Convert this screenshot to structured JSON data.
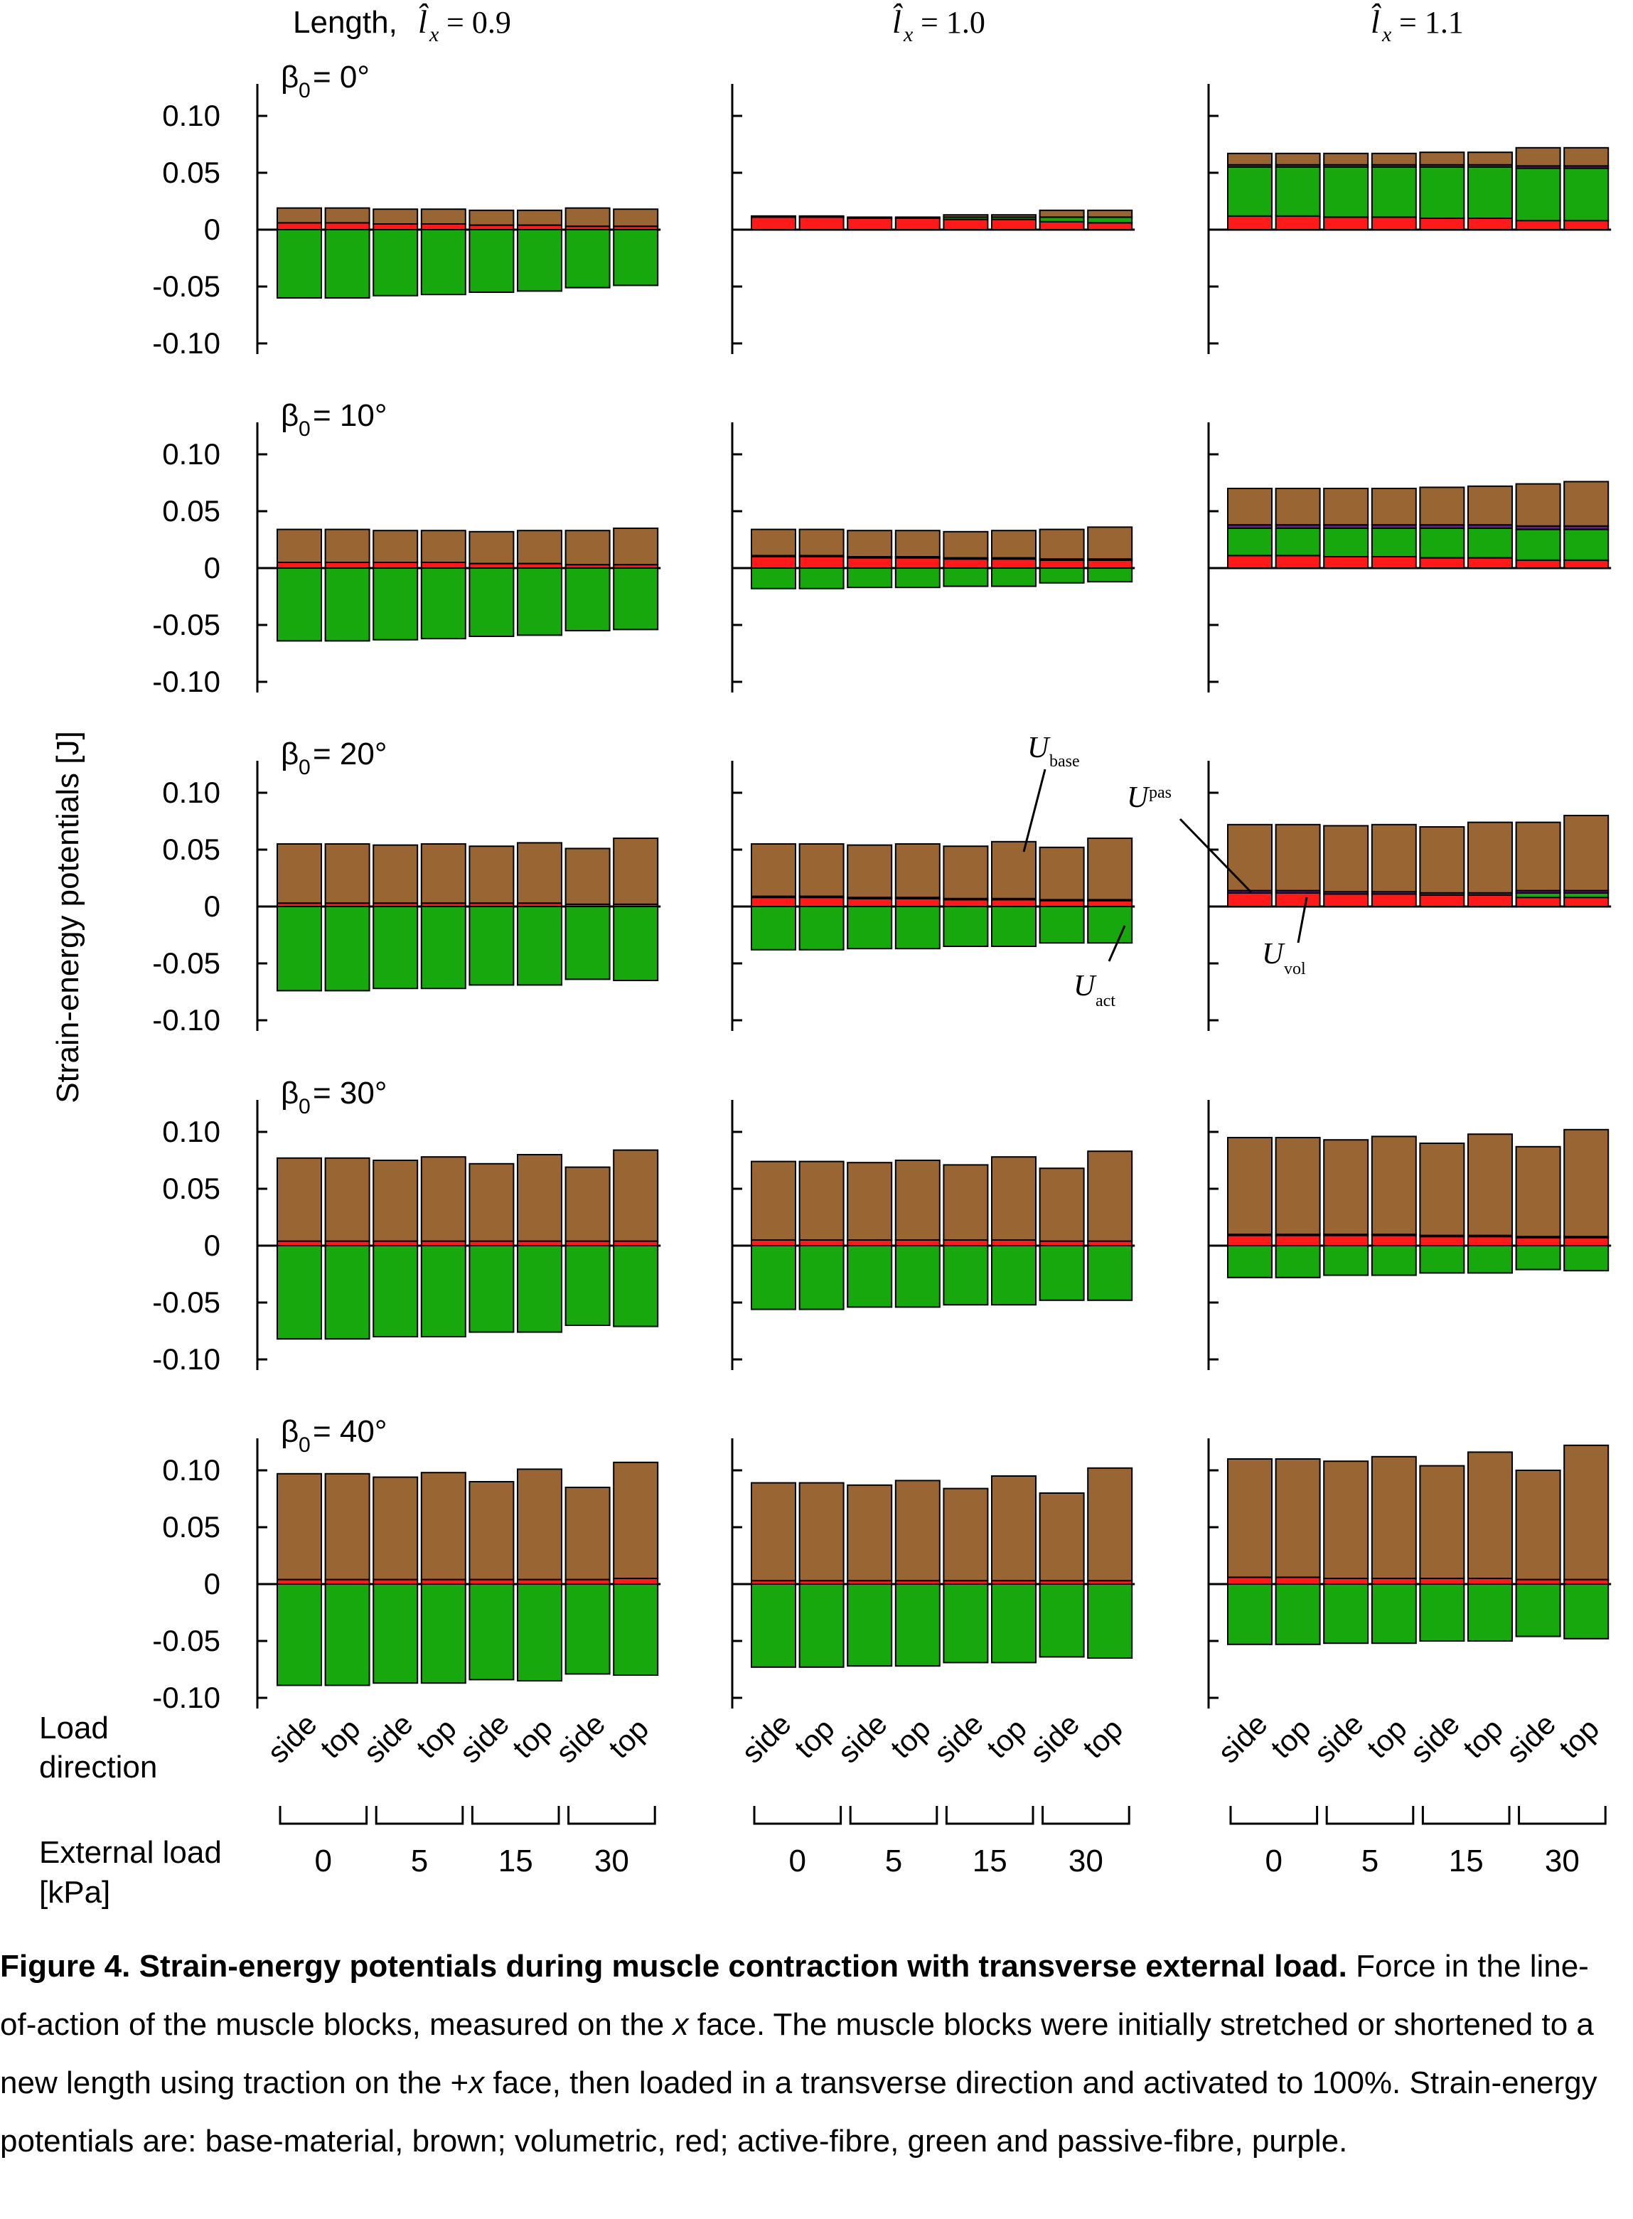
{
  "colors": {
    "base": "#996633",
    "vol": "#ff1a1a",
    "act": "#16a80d",
    "pas": "#6a1c8f",
    "line": "#000000"
  },
  "header": {
    "length_label": "Length, ",
    "col_labels": [
      "= 0.9",
      "= 1.0",
      "= 1.1"
    ]
  },
  "y_axis": {
    "label": "Strain-energy potentials [J]",
    "ticks": [
      "0.10",
      "0.05",
      "0",
      "-0.05",
      "-0.10"
    ]
  },
  "rows": [
    {
      "beta_label": "= 0°"
    },
    {
      "beta_label": "= 10°"
    },
    {
      "beta_label": "= 20°"
    },
    {
      "beta_label": "= 30°"
    },
    {
      "beta_label": "= 40°"
    }
  ],
  "x_axis": {
    "load_direction_label": [
      "Load",
      "direction"
    ],
    "directions": [
      "side",
      "top",
      "side",
      "top",
      "side",
      "top",
      "side",
      "top"
    ],
    "external_load_label": [
      "External load",
      "[kPa]"
    ],
    "load_values": [
      "0",
      "5",
      "15",
      "30"
    ]
  },
  "annotations": {
    "U_base": "base",
    "U_pas": "pas",
    "U_vol": "vol",
    "U_act": "act"
  },
  "chart_data": {
    "type": "bar",
    "description_units": "J",
    "ylim": [
      -0.1,
      0.13
    ],
    "categories": [
      "0 side",
      "0 top",
      "5 side",
      "5 top",
      "15 side",
      "15 top",
      "30 side",
      "30 top"
    ],
    "panels": [
      {
        "row": 0,
        "col": 0,
        "title": "β0 = 0°, lx = 0.9",
        "vol": [
          0.006,
          0.006,
          0.005,
          0.005,
          0.004,
          0.004,
          0.003,
          0.003
        ],
        "pas": [
          0,
          0,
          0,
          0,
          0,
          0,
          0,
          0
        ],
        "base": [
          0.013,
          0.013,
          0.013,
          0.013,
          0.013,
          0.013,
          0.016,
          0.015
        ],
        "act": [
          -0.06,
          -0.06,
          -0.058,
          -0.057,
          -0.055,
          -0.054,
          -0.051,
          -0.049
        ]
      },
      {
        "row": 0,
        "col": 1,
        "title": "β0 = 0°, lx = 1.0",
        "vol": [
          0.011,
          0.011,
          0.01,
          0.01,
          0.009,
          0.009,
          0.007,
          0.006
        ],
        "act_pos": [
          0,
          0,
          0,
          0,
          0.002,
          0.002,
          0.004,
          0.005
        ],
        "pas": [
          0,
          0,
          0,
          0,
          0,
          0,
          0,
          0
        ],
        "base": [
          0.001,
          0.001,
          0.001,
          0.001,
          0.002,
          0.002,
          0.006,
          0.006
        ],
        "act": [
          0,
          0,
          0,
          0,
          0,
          0,
          0,
          0
        ]
      },
      {
        "row": 0,
        "col": 2,
        "title": "β0 = 0°, lx = 1.1",
        "vol": [
          0.012,
          0.012,
          0.011,
          0.011,
          0.01,
          0.01,
          0.008,
          0.008
        ],
        "act_pos": [
          0.043,
          0.043,
          0.044,
          0.044,
          0.045,
          0.045,
          0.046,
          0.046
        ],
        "pas": [
          0.002,
          0.002,
          0.002,
          0.002,
          0.002,
          0.002,
          0.002,
          0.002
        ],
        "base": [
          0.01,
          0.01,
          0.01,
          0.01,
          0.011,
          0.011,
          0.016,
          0.016
        ],
        "act": [
          0,
          0,
          0,
          0,
          0,
          0,
          0,
          0
        ]
      },
      {
        "row": 1,
        "col": 0,
        "title": "β0 = 10°, lx = 0.9",
        "vol": [
          0.005,
          0.005,
          0.005,
          0.005,
          0.004,
          0.004,
          0.003,
          0.003
        ],
        "pas": [
          0,
          0,
          0,
          0,
          0,
          0,
          0,
          0
        ],
        "base": [
          0.029,
          0.029,
          0.028,
          0.028,
          0.028,
          0.029,
          0.03,
          0.032
        ],
        "act": [
          -0.064,
          -0.064,
          -0.063,
          -0.062,
          -0.06,
          -0.059,
          -0.055,
          -0.054
        ]
      },
      {
        "row": 1,
        "col": 1,
        "title": "β0 = 10°, lx = 1.0",
        "vol": [
          0.01,
          0.01,
          0.009,
          0.009,
          0.008,
          0.008,
          0.007,
          0.007
        ],
        "pas": [
          0.001,
          0.001,
          0.001,
          0.001,
          0.001,
          0.001,
          0.001,
          0.001
        ],
        "base": [
          0.023,
          0.023,
          0.023,
          0.023,
          0.023,
          0.024,
          0.026,
          0.028
        ],
        "act": [
          -0.018,
          -0.018,
          -0.017,
          -0.017,
          -0.016,
          -0.016,
          -0.013,
          -0.012
        ]
      },
      {
        "row": 1,
        "col": 2,
        "title": "β0 = 10°, lx = 1.1",
        "vol": [
          0.011,
          0.011,
          0.01,
          0.01,
          0.009,
          0.009,
          0.007,
          0.007
        ],
        "act_pos": [
          0.024,
          0.024,
          0.025,
          0.025,
          0.026,
          0.026,
          0.027,
          0.027
        ],
        "pas": [
          0.003,
          0.003,
          0.003,
          0.003,
          0.003,
          0.003,
          0.003,
          0.003
        ],
        "base": [
          0.032,
          0.032,
          0.032,
          0.032,
          0.033,
          0.034,
          0.037,
          0.039
        ],
        "act": [
          0,
          0,
          0,
          0,
          0,
          0,
          0,
          0
        ]
      },
      {
        "row": 2,
        "col": 0,
        "title": "β0 = 20°, lx = 0.9",
        "vol": [
          0.003,
          0.003,
          0.003,
          0.003,
          0.003,
          0.003,
          0.002,
          0.002
        ],
        "pas": [
          0,
          0,
          0,
          0,
          0,
          0,
          0,
          0
        ],
        "base": [
          0.052,
          0.052,
          0.051,
          0.052,
          0.05,
          0.053,
          0.049,
          0.058
        ],
        "act": [
          -0.074,
          -0.074,
          -0.072,
          -0.072,
          -0.069,
          -0.069,
          -0.064,
          -0.065
        ]
      },
      {
        "row": 2,
        "col": 1,
        "title": "β0 = 20°, lx = 1.0",
        "vol": [
          0.008,
          0.008,
          0.007,
          0.007,
          0.006,
          0.006,
          0.005,
          0.005
        ],
        "pas": [
          0.001,
          0.001,
          0.001,
          0.001,
          0.001,
          0.001,
          0.001,
          0.001
        ],
        "base": [
          0.046,
          0.046,
          0.046,
          0.047,
          0.046,
          0.05,
          0.046,
          0.054
        ],
        "act": [
          -0.038,
          -0.038,
          -0.037,
          -0.037,
          -0.035,
          -0.035,
          -0.032,
          -0.032
        ]
      },
      {
        "row": 2,
        "col": 2,
        "title": "β0 = 20°, lx = 1.1",
        "vol": [
          0.012,
          0.012,
          0.011,
          0.011,
          0.01,
          0.01,
          0.008,
          0.008
        ],
        "act_pos": [
          0,
          0,
          0,
          0,
          0,
          0,
          0.004,
          0.004
        ],
        "pas": [
          0.002,
          0.002,
          0.002,
          0.002,
          0.002,
          0.002,
          0.002,
          0.002
        ],
        "base": [
          0.058,
          0.058,
          0.058,
          0.059,
          0.058,
          0.062,
          0.06,
          0.066
        ],
        "act": [
          0,
          0,
          0,
          0,
          0,
          0,
          0,
          0
        ]
      },
      {
        "row": 3,
        "col": 0,
        "title": "β0 = 30°, lx = 0.9",
        "vol": [
          0.004,
          0.004,
          0.004,
          0.004,
          0.004,
          0.004,
          0.004,
          0.004
        ],
        "pas": [
          0,
          0,
          0,
          0,
          0,
          0,
          0,
          0
        ],
        "base": [
          0.073,
          0.073,
          0.071,
          0.074,
          0.068,
          0.076,
          0.065,
          0.08
        ],
        "act": [
          -0.082,
          -0.082,
          -0.08,
          -0.08,
          -0.076,
          -0.076,
          -0.07,
          -0.071
        ]
      },
      {
        "row": 3,
        "col": 1,
        "title": "β0 = 30°, lx = 1.0",
        "vol": [
          0.005,
          0.005,
          0.005,
          0.005,
          0.005,
          0.005,
          0.004,
          0.004
        ],
        "pas": [
          0,
          0,
          0,
          0,
          0,
          0,
          0,
          0
        ],
        "base": [
          0.069,
          0.069,
          0.068,
          0.07,
          0.066,
          0.073,
          0.064,
          0.079
        ],
        "act": [
          -0.056,
          -0.056,
          -0.054,
          -0.054,
          -0.052,
          -0.052,
          -0.048,
          -0.048
        ]
      },
      {
        "row": 3,
        "col": 2,
        "title": "β0 = 30°, lx = 1.1",
        "vol": [
          0.009,
          0.009,
          0.009,
          0.009,
          0.008,
          0.008,
          0.007,
          0.007
        ],
        "pas": [
          0.001,
          0.001,
          0.001,
          0.001,
          0.001,
          0.001,
          0.001,
          0.001
        ],
        "base": [
          0.085,
          0.085,
          0.083,
          0.086,
          0.081,
          0.089,
          0.079,
          0.094
        ],
        "act": [
          -0.028,
          -0.028,
          -0.026,
          -0.026,
          -0.024,
          -0.024,
          -0.021,
          -0.022
        ]
      },
      {
        "row": 4,
        "col": 0,
        "title": "β0 = 40°, lx = 0.9",
        "vol": [
          0.004,
          0.004,
          0.004,
          0.004,
          0.004,
          0.004,
          0.004,
          0.005
        ],
        "pas": [
          0,
          0,
          0,
          0,
          0,
          0,
          0,
          0
        ],
        "base": [
          0.093,
          0.093,
          0.09,
          0.094,
          0.086,
          0.097,
          0.081,
          0.102
        ],
        "act": [
          -0.089,
          -0.089,
          -0.087,
          -0.087,
          -0.084,
          -0.085,
          -0.079,
          -0.08
        ]
      },
      {
        "row": 4,
        "col": 1,
        "title": "β0 = 40°, lx = 1.0",
        "vol": [
          0.003,
          0.003,
          0.003,
          0.003,
          0.003,
          0.003,
          0.003,
          0.003
        ],
        "pas": [
          0,
          0,
          0,
          0,
          0,
          0,
          0,
          0
        ],
        "base": [
          0.086,
          0.086,
          0.084,
          0.088,
          0.081,
          0.092,
          0.077,
          0.099
        ],
        "act": [
          -0.073,
          -0.073,
          -0.072,
          -0.072,
          -0.069,
          -0.069,
          -0.064,
          -0.065
        ]
      },
      {
        "row": 4,
        "col": 2,
        "title": "β0 = 40°, lx = 1.1",
        "vol": [
          0.006,
          0.006,
          0.005,
          0.005,
          0.005,
          0.005,
          0.004,
          0.004
        ],
        "pas": [
          0,
          0,
          0,
          0,
          0,
          0,
          0,
          0
        ],
        "base": [
          0.104,
          0.104,
          0.103,
          0.107,
          0.099,
          0.111,
          0.096,
          0.118
        ],
        "act": [
          -0.053,
          -0.053,
          -0.052,
          -0.052,
          -0.05,
          -0.05,
          -0.046,
          -0.048
        ]
      }
    ]
  },
  "caption": {
    "title": "Figure 4. Strain-energy potentials during muscle contraction with transverse external load.",
    "body": " Force in the line- of-action of the muscle blocks, measured on the ",
    "x1": "x",
    "body2": " face. The muscle blocks were initially stretched or shortened to a new length using traction on the +",
    "x2": "x",
    "body3": " face, then loaded in a transverse direction and activated to 100%. Strain-energy potentials are: base-material, brown; volumetric, red; active-fibre, green and passive-fibre, purple."
  }
}
